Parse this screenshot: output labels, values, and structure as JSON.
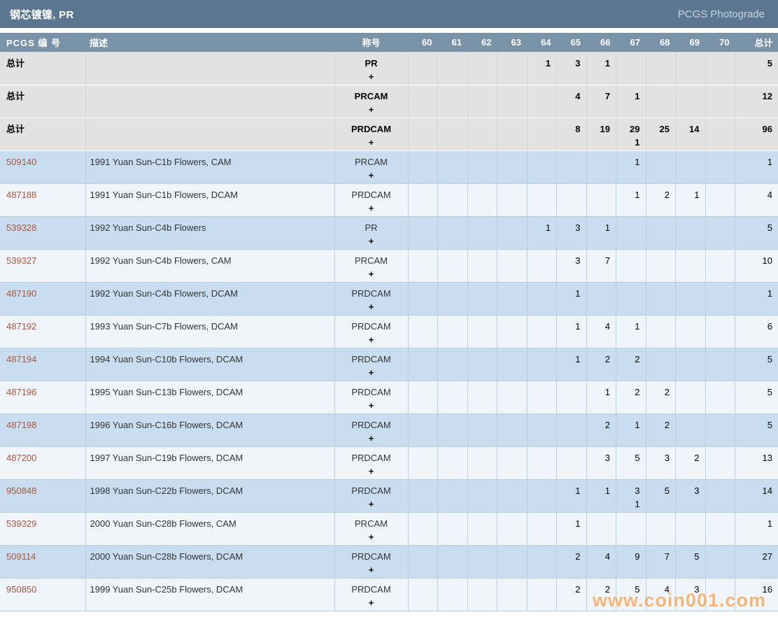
{
  "title_bar": {
    "title": "钢芯镀镍, PR",
    "right_label": "PCGS Photograde"
  },
  "table": {
    "columns": {
      "pcgs_no": "PCGS 编 号",
      "description": "描述",
      "designation": "称号",
      "grades": [
        "60",
        "61",
        "62",
        "63",
        "64",
        "65",
        "66",
        "67",
        "68",
        "69",
        "70"
      ],
      "total": "总计"
    },
    "total_row_label": "总计",
    "plus_symbol": "+",
    "rows": [
      {
        "type": "total",
        "pcgs_no": "",
        "description": "",
        "designation": "PR",
        "grades": {
          "64": [
            "1"
          ],
          "65": [
            "3"
          ],
          "66": [
            "1"
          ]
        },
        "total": "5"
      },
      {
        "type": "total",
        "pcgs_no": "",
        "description": "",
        "designation": "PRCAM",
        "grades": {
          "65": [
            "4"
          ],
          "66": [
            "7"
          ],
          "67": [
            "1"
          ]
        },
        "total": "12"
      },
      {
        "type": "total",
        "pcgs_no": "",
        "description": "",
        "designation": "PRDCAM",
        "grades": {
          "65": [
            "8"
          ],
          "66": [
            "19"
          ],
          "67": [
            "29",
            "1"
          ],
          "68": [
            "25"
          ],
          "69": [
            "14"
          ]
        },
        "total": "96"
      },
      {
        "type": "data",
        "pcgs_no": "509140",
        "description": "1991 Yuan Sun-C1b Flowers, CAM",
        "designation": "PRCAM",
        "grades": {
          "67": [
            "1"
          ]
        },
        "total": "1"
      },
      {
        "type": "data",
        "pcgs_no": "487188",
        "description": "1991 Yuan Sun-C1b Flowers, DCAM",
        "designation": "PRDCAM",
        "grades": {
          "67": [
            "1"
          ],
          "68": [
            "2"
          ],
          "69": [
            "1"
          ]
        },
        "total": "4"
      },
      {
        "type": "data",
        "pcgs_no": "539328",
        "description": "1992 Yuan Sun-C4b Flowers",
        "designation": "PR",
        "grades": {
          "64": [
            "1"
          ],
          "65": [
            "3"
          ],
          "66": [
            "1"
          ]
        },
        "total": "5"
      },
      {
        "type": "data",
        "pcgs_no": "539327",
        "description": "1992 Yuan Sun-C4b Flowers, CAM",
        "designation": "PRCAM",
        "grades": {
          "65": [
            "3"
          ],
          "66": [
            "7"
          ]
        },
        "total": "10"
      },
      {
        "type": "data",
        "pcgs_no": "487190",
        "description": "1992 Yuan Sun-C4b Flowers, DCAM",
        "designation": "PRDCAM",
        "grades": {
          "65": [
            "1"
          ]
        },
        "total": "1"
      },
      {
        "type": "data",
        "pcgs_no": "487192",
        "description": "1993 Yuan Sun-C7b Flowers, DCAM",
        "designation": "PRDCAM",
        "grades": {
          "65": [
            "1"
          ],
          "66": [
            "4"
          ],
          "67": [
            "1"
          ]
        },
        "total": "6"
      },
      {
        "type": "data",
        "pcgs_no": "487194",
        "description": "1994 Yuan Sun-C10b Flowers, DCAM",
        "designation": "PRDCAM",
        "grades": {
          "65": [
            "1"
          ],
          "66": [
            "2"
          ],
          "67": [
            "2"
          ]
        },
        "total": "5"
      },
      {
        "type": "data",
        "pcgs_no": "487196",
        "description": "1995 Yuan Sun-C13b Flowers, DCAM",
        "designation": "PRDCAM",
        "grades": {
          "66": [
            "1"
          ],
          "67": [
            "2"
          ],
          "68": [
            "2"
          ]
        },
        "total": "5"
      },
      {
        "type": "data",
        "pcgs_no": "487198",
        "description": "1996 Yuan Sun-C16b Flowers, DCAM",
        "designation": "PRDCAM",
        "grades": {
          "66": [
            "2"
          ],
          "67": [
            "1"
          ],
          "68": [
            "2"
          ]
        },
        "total": "5"
      },
      {
        "type": "data",
        "pcgs_no": "487200",
        "description": "1997 Yuan Sun-C19b Flowers, DCAM",
        "designation": "PRDCAM",
        "grades": {
          "66": [
            "3"
          ],
          "67": [
            "5"
          ],
          "68": [
            "3"
          ],
          "69": [
            "2"
          ]
        },
        "total": "13"
      },
      {
        "type": "data",
        "pcgs_no": "950848",
        "description": "1998 Yuan Sun-C22b Flowers, DCAM",
        "designation": "PRDCAM",
        "grades": {
          "65": [
            "1"
          ],
          "66": [
            "1"
          ],
          "67": [
            "3",
            "1"
          ],
          "68": [
            "5"
          ],
          "69": [
            "3"
          ]
        },
        "total": "14"
      },
      {
        "type": "data",
        "pcgs_no": "539329",
        "description": "2000 Yuan Sun-C28b Flowers, CAM",
        "designation": "PRCAM",
        "grades": {
          "65": [
            "1"
          ]
        },
        "total": "1"
      },
      {
        "type": "data",
        "pcgs_no": "509114",
        "description": "2000 Yuan Sun-C28b Flowers, DCAM",
        "designation": "PRDCAM",
        "grades": {
          "65": [
            "2"
          ],
          "66": [
            "4"
          ],
          "67": [
            "9"
          ],
          "68": [
            "7"
          ],
          "69": [
            "5"
          ]
        },
        "total": "27"
      },
      {
        "type": "data",
        "pcgs_no": "950850",
        "description": "1999 Yuan Sun-C25b Flowers, DCAM",
        "designation": "PRDCAM",
        "grades": {
          "65": [
            "2"
          ],
          "66": [
            "2"
          ],
          "67": [
            "5"
          ],
          "68": [
            "4"
          ],
          "69": [
            "3"
          ]
        },
        "total": "16"
      }
    ]
  },
  "watermark": "www.coin001.com",
  "colors": {
    "titlebar": "#5b7690",
    "header": "#7a92a8",
    "row_blue": "#c9ddf0",
    "row_white": "#eff5fa",
    "row_total": "#e2e2e2",
    "border": "#b9cedf",
    "border_total": "#ccd6dd",
    "link": "#a9573d",
    "text": "#333333",
    "title_right": "#c7d3df",
    "watermark": "#f6a75f"
  }
}
